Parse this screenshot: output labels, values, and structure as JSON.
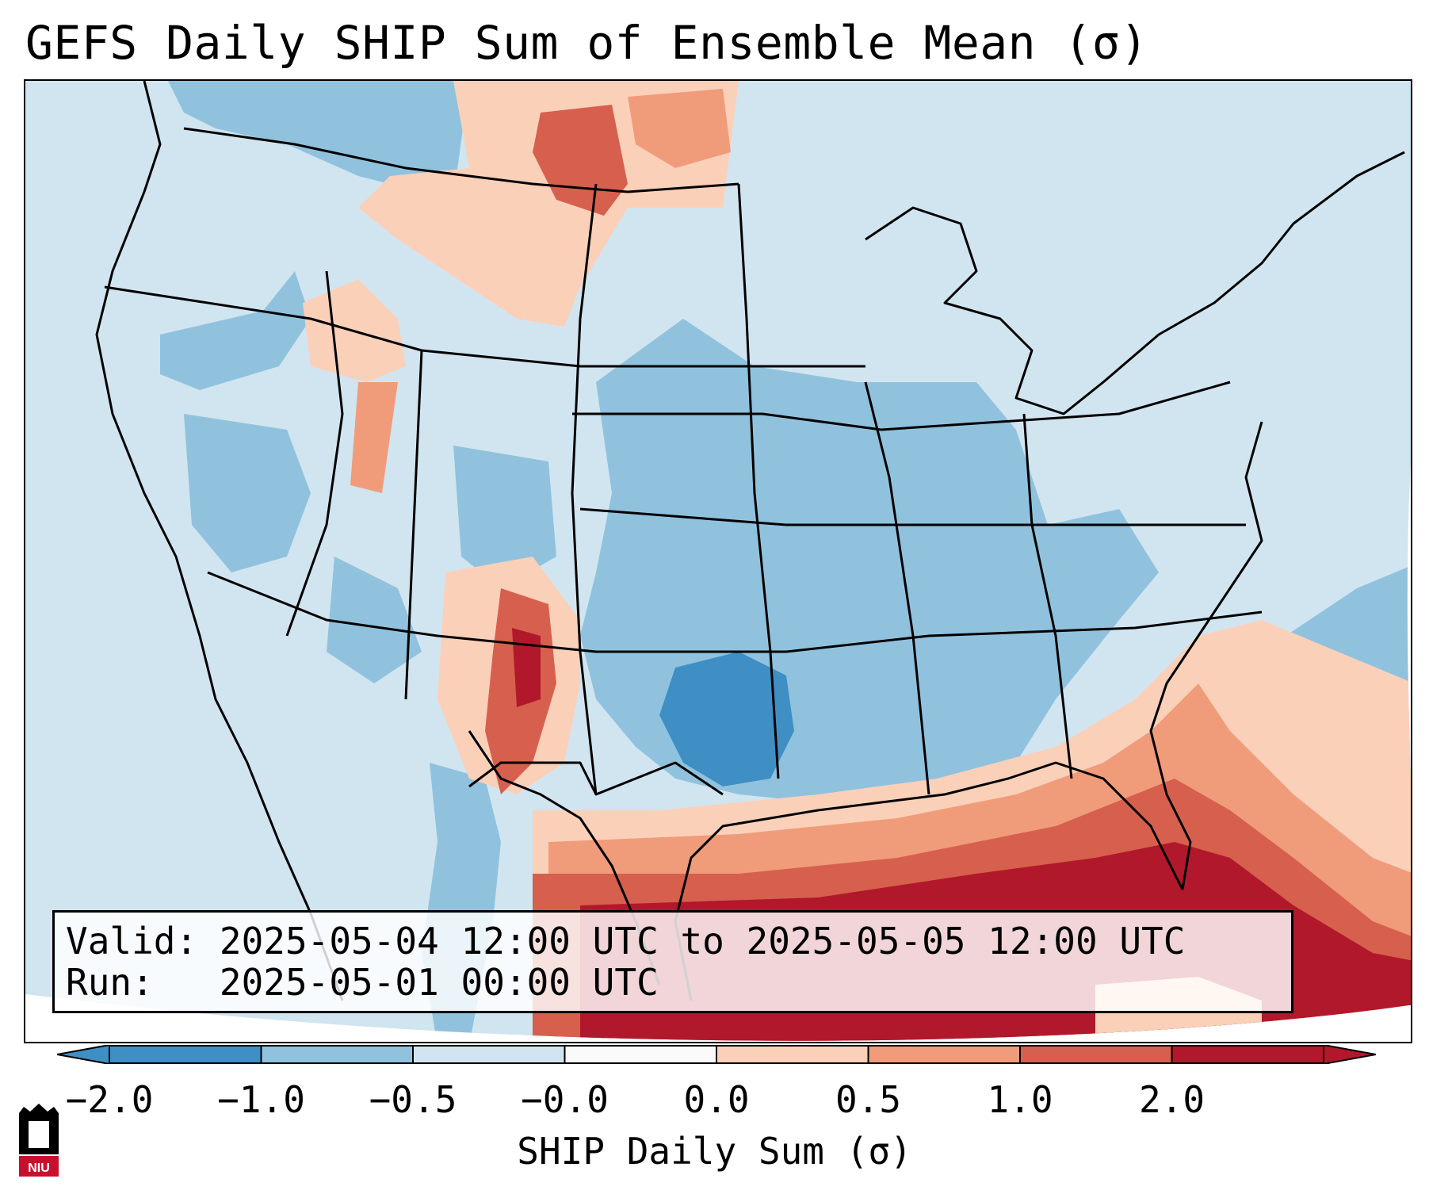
{
  "title": "GEFS Daily SHIP Sum of Ensemble Mean (σ)",
  "info": {
    "valid_label": "Valid:",
    "valid_value": "2025-05-04 12:00 UTC to 2025-05-05 12:00 UTC",
    "run_label": "Run:",
    "run_value": "2025-05-01 00:00 UTC"
  },
  "colorbar": {
    "label": "SHIP Daily Sum (σ)",
    "ticks": [
      "−2.0",
      "−1.0",
      "−0.5",
      "−0.0",
      "0.0",
      "0.5",
      "1.0",
      "2.0"
    ],
    "bins": [
      {
        "color": "#3f8fc5"
      },
      {
        "color": "#90c2de"
      },
      {
        "color": "#d1e5f0"
      },
      {
        "color": "#fafafa"
      },
      {
        "color": "#fbd0b9"
      },
      {
        "color": "#f09c7b"
      },
      {
        "color": "#d6604d"
      },
      {
        "color": "#b2182b"
      }
    ],
    "extend_low_color": "#3f8fc5",
    "extend_high_color": "#b2182b"
  },
  "logo": {
    "text": "NIU",
    "colors": {
      "primary": "#c8102e",
      "secondary": "#000000"
    }
  }
}
